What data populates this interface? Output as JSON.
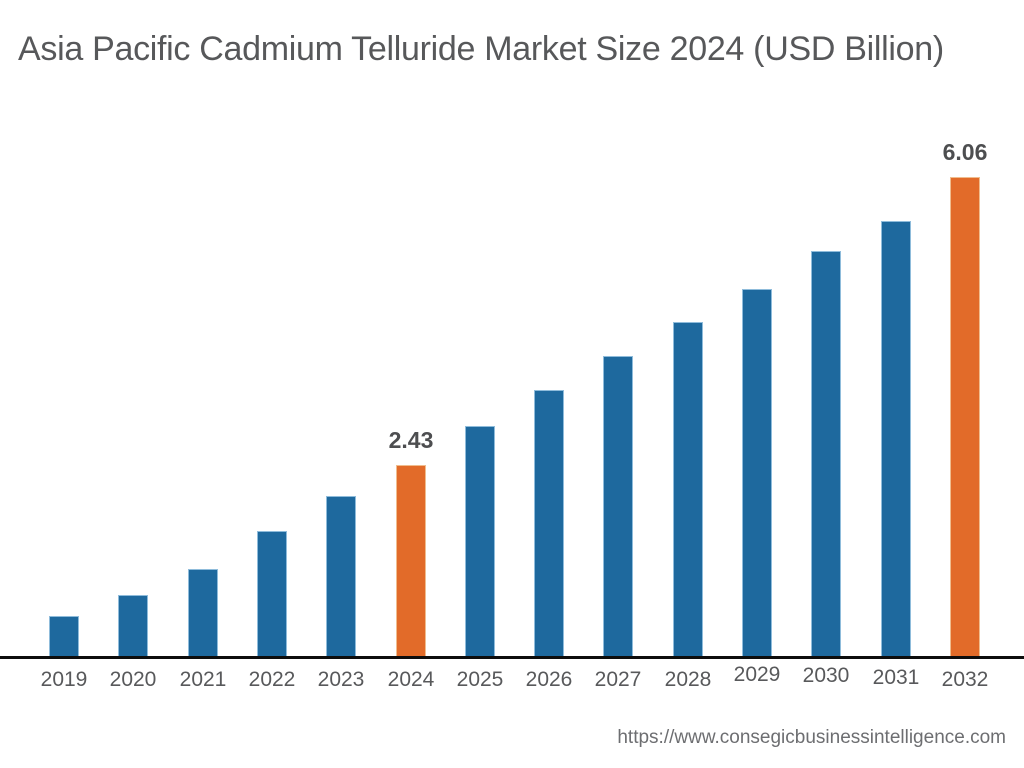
{
  "title": "Asia Pacific Cadmium Telluride Market Size 2024 (USD Billion)",
  "footer": {
    "url": "https://www.consegicbusinessintelligence.com"
  },
  "colors": {
    "bar_default": "#1e699e",
    "bar_highlight": "#e26b29",
    "axis": "#0d0d0d",
    "title_text": "#57585a",
    "value_label_text": "#4d4e50",
    "tick_text": "#58595b",
    "footer_text": "#6d6e71"
  },
  "chart_data": {
    "type": "bar",
    "title": "Asia Pacific Cadmium Telluride Market Size 2024 (USD Billion)",
    "unit": "USD Billion",
    "xlabel": "",
    "ylabel": "",
    "ylim": [
      0,
      6.5
    ],
    "grid": false,
    "legend": "none",
    "categories": [
      "2019",
      "2020",
      "2021",
      "2022",
      "2023",
      "2024",
      "2025",
      "2026",
      "2027",
      "2028",
      "2029",
      "2030",
      "2031",
      "2032"
    ],
    "values": [
      0.53,
      0.79,
      1.12,
      1.6,
      2.04,
      2.43,
      2.92,
      3.38,
      3.81,
      4.24,
      4.65,
      5.13,
      5.51,
      6.06
    ],
    "highlighted_categories": [
      "2024",
      "2032"
    ],
    "data_labels": {
      "2024": "2.43",
      "2032": "6.06"
    }
  }
}
